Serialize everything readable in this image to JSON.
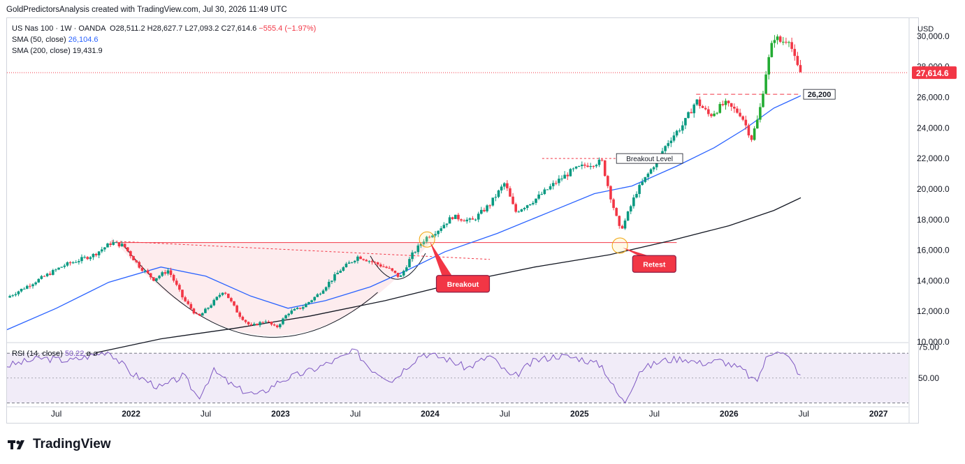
{
  "header": {
    "text": "GoldPredictorsAnalysis created with TradingView.com, Jul 30, 2026 11:49 UTC"
  },
  "legend": {
    "symbol": "US Nas 100 · 1W · OANDA",
    "o_label": "O",
    "o": "28,511.2",
    "h_label": "H",
    "h": "28,627.7",
    "l_label": "L",
    "l": "27,093.2",
    "c_label": "C",
    "c": "27,614.6",
    "change": "−555.4 (−1.97%)",
    "sma50_label": "SMA (50, close)",
    "sma50_value": "26,104.6",
    "sma200_label": "SMA (200, close)",
    "sma200_value": "19,431.9",
    "rsi_label": "RSI (14, close)",
    "rsi_value": "50.22",
    "rsi_extra": "ø ø"
  },
  "footer": {
    "brand": "TradingView"
  },
  "chart_data": {
    "type": "candlestick",
    "currency": "USD",
    "y_ticks": [
      "30,000.0",
      "28,000.0",
      "26,000.0",
      "24,000.0",
      "22,000.0",
      "20,000.0",
      "18,000.0",
      "16,000.0",
      "14,000.0",
      "12,000.0",
      "10,000.0"
    ],
    "y_tick_values": [
      30000,
      28000,
      26000,
      24000,
      22000,
      20000,
      18000,
      16000,
      14000,
      12000,
      10000
    ],
    "ylim": [
      10000,
      31000
    ],
    "last_price": 27614.6,
    "last_price_label": "27,614.6",
    "x_ticks": [
      "Jul",
      "2022",
      "Jul",
      "2023",
      "Jul",
      "2024",
      "Jul",
      "2025",
      "Jul",
      "2026",
      "Jul",
      "2027"
    ],
    "x_tick_dates": [
      2021.5,
      2022.0,
      2022.5,
      2023.0,
      2023.5,
      2024.0,
      2024.5,
      2025.0,
      2025.5,
      2026.0,
      2026.5,
      2027.0
    ],
    "xlim": [
      2021.17,
      2027.2
    ],
    "price_anchors": [
      [
        2021.17,
        12900
      ],
      [
        2021.35,
        13900
      ],
      [
        2021.55,
        15000
      ],
      [
        2021.75,
        15700
      ],
      [
        2021.87,
        16500
      ],
      [
        2021.95,
        16300
      ],
      [
        2022.05,
        15000
      ],
      [
        2022.15,
        14100
      ],
      [
        2022.25,
        14700
      ],
      [
        2022.35,
        12800
      ],
      [
        2022.45,
        11600
      ],
      [
        2022.55,
        12600
      ],
      [
        2022.62,
        13400
      ],
      [
        2022.72,
        11800
      ],
      [
        2022.8,
        11000
      ],
      [
        2022.9,
        11400
      ],
      [
        2022.97,
        10900
      ],
      [
        2023.05,
        11900
      ],
      [
        2023.15,
        12300
      ],
      [
        2023.25,
        13100
      ],
      [
        2023.4,
        14700
      ],
      [
        2023.52,
        15600
      ],
      [
        2023.62,
        15200
      ],
      [
        2023.72,
        14800
      ],
      [
        2023.8,
        14200
      ],
      [
        2023.88,
        15700
      ],
      [
        2023.97,
        16800
      ],
      [
        2024.05,
        17300
      ],
      [
        2024.15,
        18200
      ],
      [
        2024.28,
        17900
      ],
      [
        2024.4,
        19000
      ],
      [
        2024.5,
        20400
      ],
      [
        2024.57,
        18500
      ],
      [
        2024.7,
        19300
      ],
      [
        2024.85,
        20500
      ],
      [
        2024.95,
        21200
      ],
      [
        2025.05,
        21600
      ],
      [
        2025.15,
        21800
      ],
      [
        2025.2,
        19800
      ],
      [
        2025.27,
        17300
      ],
      [
        2025.3,
        17800
      ],
      [
        2025.38,
        19800
      ],
      [
        2025.48,
        21300
      ],
      [
        2025.6,
        23200
      ],
      [
        2025.7,
        24300
      ],
      [
        2025.78,
        25800
      ],
      [
        2025.87,
        24800
      ],
      [
        2025.97,
        25600
      ],
      [
        2026.08,
        24900
      ],
      [
        2026.15,
        23300
      ],
      [
        2026.2,
        24800
      ],
      [
        2026.25,
        27800
      ],
      [
        2026.3,
        30000
      ],
      [
        2026.35,
        29600
      ],
      [
        2026.4,
        29900
      ],
      [
        2026.45,
        28100
      ],
      [
        2026.48,
        27600
      ]
    ],
    "sma50_anchors": [
      [
        2021.17,
        10800
      ],
      [
        2021.5,
        12200
      ],
      [
        2021.85,
        13900
      ],
      [
        2022.2,
        14900
      ],
      [
        2022.5,
        14300
      ],
      [
        2022.8,
        13000
      ],
      [
        2023.05,
        12200
      ],
      [
        2023.3,
        12700
      ],
      [
        2023.6,
        13600
      ],
      [
        2023.85,
        14700
      ],
      [
        2024.1,
        15900
      ],
      [
        2024.45,
        17100
      ],
      [
        2024.8,
        18500
      ],
      [
        2025.1,
        19700
      ],
      [
        2025.35,
        20200
      ],
      [
        2025.65,
        21500
      ],
      [
        2025.9,
        22700
      ],
      [
        2026.1,
        23900
      ],
      [
        2026.3,
        25300
      ],
      [
        2026.48,
        26104.6
      ]
    ],
    "sma200_anchors": [
      [
        2021.77,
        9300
      ],
      [
        2022.2,
        10200
      ],
      [
        2022.7,
        10900
      ],
      [
        2023.2,
        11700
      ],
      [
        2023.7,
        12700
      ],
      [
        2024.2,
        13900
      ],
      [
        2024.7,
        14900
      ],
      [
        2025.2,
        15700
      ],
      [
        2025.6,
        16600
      ],
      [
        2026.0,
        17600
      ],
      [
        2026.3,
        18600
      ],
      [
        2026.48,
        19431.9
      ]
    ],
    "rsi_anchors": [
      [
        2021.17,
        60
      ],
      [
        2021.4,
        66
      ],
      [
        2021.6,
        64
      ],
      [
        2021.85,
        72
      ],
      [
        2022.0,
        54
      ],
      [
        2022.2,
        42
      ],
      [
        2022.35,
        52
      ],
      [
        2022.45,
        34
      ],
      [
        2022.55,
        56
      ],
      [
        2022.7,
        42
      ],
      [
        2022.85,
        36
      ],
      [
        2023.0,
        48
      ],
      [
        2023.2,
        56
      ],
      [
        2023.4,
        66
      ],
      [
        2023.5,
        72
      ],
      [
        2023.6,
        58
      ],
      [
        2023.75,
        48
      ],
      [
        2023.85,
        60
      ],
      [
        2023.95,
        70
      ],
      [
        2024.1,
        66
      ],
      [
        2024.25,
        58
      ],
      [
        2024.4,
        68
      ],
      [
        2024.55,
        50
      ],
      [
        2024.7,
        64
      ],
      [
        2024.85,
        68
      ],
      [
        2025.0,
        66
      ],
      [
        2025.15,
        60
      ],
      [
        2025.25,
        38
      ],
      [
        2025.3,
        30
      ],
      [
        2025.4,
        56
      ],
      [
        2025.55,
        64
      ],
      [
        2025.7,
        66
      ],
      [
        2025.8,
        62
      ],
      [
        2025.95,
        64
      ],
      [
        2026.1,
        56
      ],
      [
        2026.18,
        46
      ],
      [
        2026.25,
        66
      ],
      [
        2026.32,
        74
      ],
      [
        2026.4,
        66
      ],
      [
        2026.45,
        58
      ],
      [
        2026.48,
        50.22
      ]
    ],
    "rsi_levels": [
      70,
      50,
      30
    ],
    "rsi_ticks": [
      "75.00",
      "50.00"
    ],
    "rsi_tick_values": [
      75,
      50
    ],
    "rsi_ylim": [
      28,
      78
    ],
    "levels": [
      {
        "label": "26,200",
        "price": 26200,
        "x1": 2025.78,
        "x2": 2026.48,
        "style": "dashed",
        "color": "#f23645"
      },
      {
        "label": "Breakout Level",
        "price": 22000,
        "x1": 2024.75,
        "x2": 2025.55,
        "style": "dashed",
        "color": "#f23645"
      },
      {
        "label": "",
        "price": 16500,
        "x1": 2021.87,
        "x2": 2025.65,
        "style": "solid",
        "color": "#f23645"
      },
      {
        "label": "",
        "price": 16600,
        "x1": 2021.87,
        "x2": 2024.4,
        "end": 15400,
        "style": "dashed",
        "color": "#f23645"
      }
    ],
    "annotations": [
      {
        "label": "Breakout",
        "x": 2023.98,
        "price": 16700,
        "box_x": 2024.22,
        "box_price": 13800
      },
      {
        "label": "Retest",
        "x": 2025.27,
        "price": 16300,
        "box_x": 2025.5,
        "box_price": 15100
      }
    ],
    "colors": {
      "up": "#089981",
      "up_bright": "#22ab32",
      "down": "#f23645",
      "sma50": "#2962ff",
      "sma200": "#131722",
      "rsi": "#7e57c2",
      "rsi_bg": "#ede7f6",
      "cup_fill": "#fdecee"
    }
  }
}
